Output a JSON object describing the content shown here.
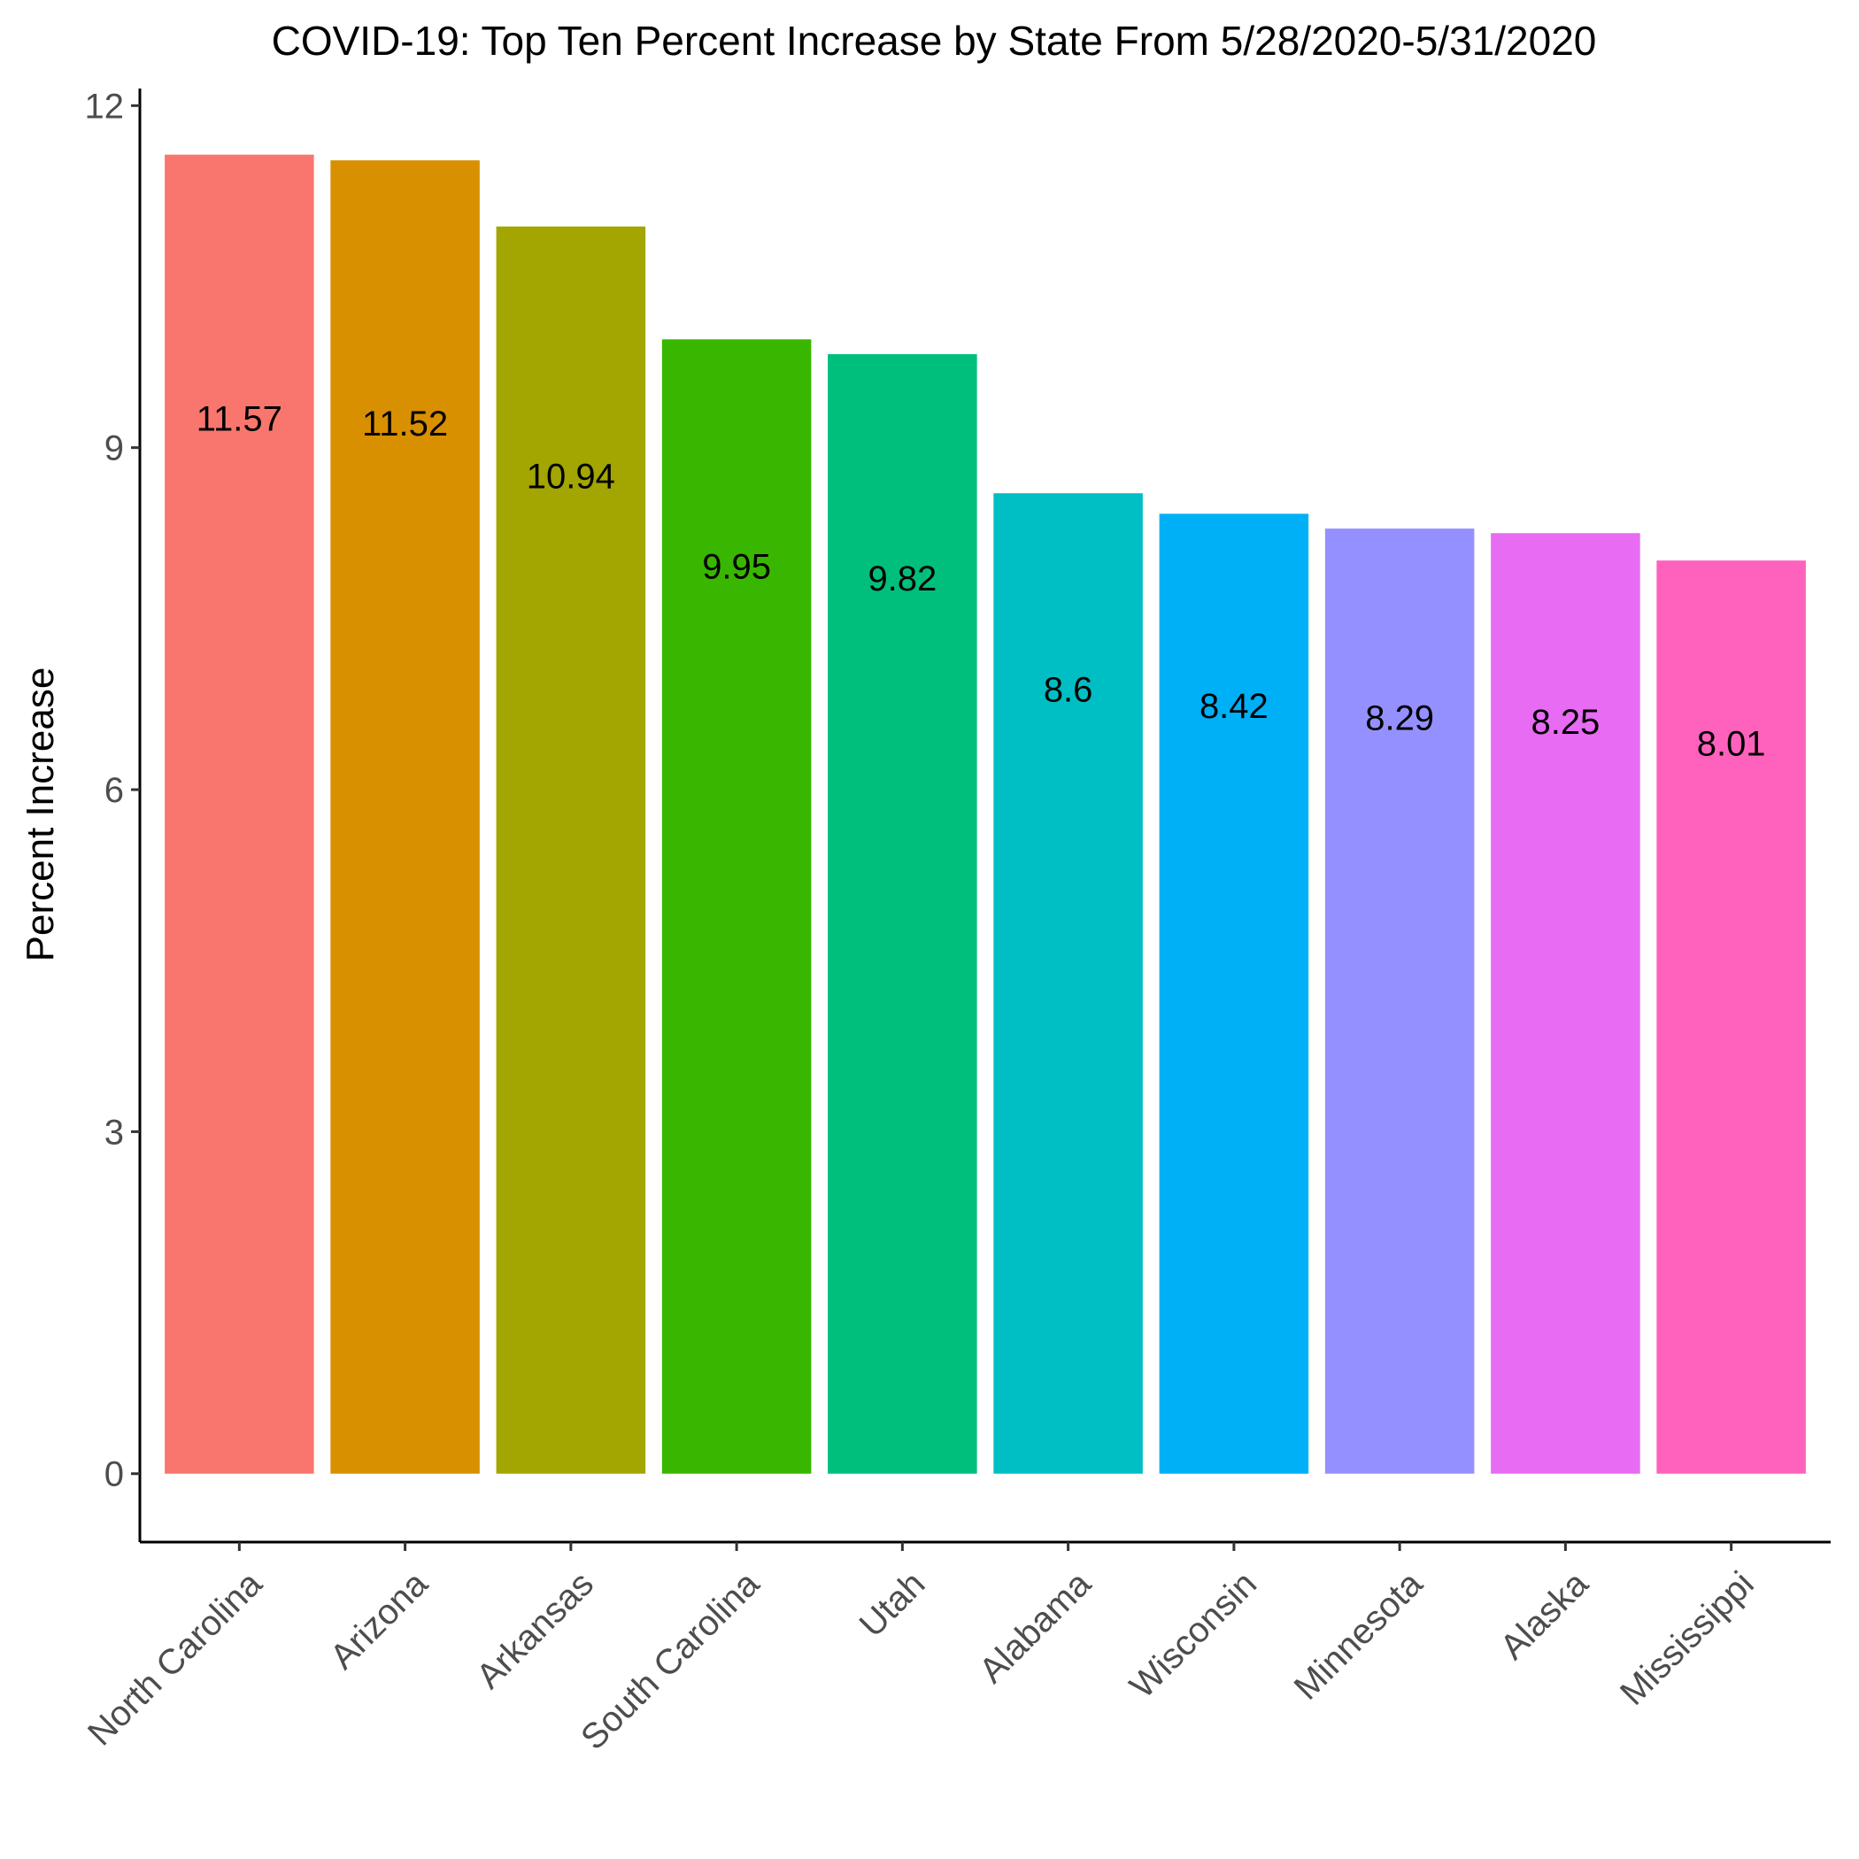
{
  "chart_data": {
    "type": "bar",
    "title": "COVID-19: Top Ten Percent Increase by State From 5/28/2020-5/31/2020",
    "xlabel": "",
    "ylabel": "Percent Increase",
    "categories": [
      "North Carolina",
      "Arizona",
      "Arkansas",
      "South Carolina",
      "Utah",
      "Alabama",
      "Wisconsin",
      "Minnesota",
      "Alaska",
      "Mississippi"
    ],
    "values": [
      11.57,
      11.52,
      10.94,
      9.95,
      9.82,
      8.6,
      8.42,
      8.29,
      8.25,
      8.01
    ],
    "value_labels": [
      "11.57",
      "11.52",
      "10.94",
      "9.95",
      "9.82",
      "8.6",
      "8.42",
      "8.29",
      "8.25",
      "8.01"
    ],
    "colors": [
      "#F8766D",
      "#D89000",
      "#A3A500",
      "#39B600",
      "#00BF7D",
      "#00BFC4",
      "#00B0F6",
      "#9590FF",
      "#E76BF3",
      "#FF62BC"
    ],
    "ylim": [
      -0.6,
      12.15
    ],
    "yticks": [
      0,
      3,
      6,
      9,
      12
    ],
    "ytick_labels": [
      "0",
      "3",
      "6",
      "9",
      "12"
    ],
    "grid": false,
    "legend": "none"
  }
}
